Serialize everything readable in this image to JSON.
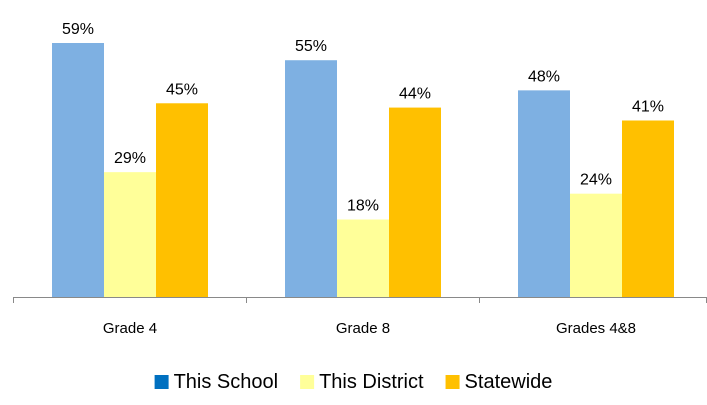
{
  "chart_data": {
    "type": "bar",
    "title": "",
    "xlabel": "",
    "ylabel": "",
    "categories": [
      "Grade 4",
      "Grade 8",
      "Grades 4&8"
    ],
    "series": [
      {
        "name": "This School",
        "values": [
          59,
          55,
          48
        ],
        "labels": [
          "59%",
          "55%",
          "48%"
        ],
        "color": "#7EB0E2"
      },
      {
        "name": "This District",
        "values": [
          29,
          18,
          24
        ],
        "labels": [
          "29%",
          "18%",
          "24%"
        ],
        "color": "#FFFF99"
      },
      {
        "name": "Statewide",
        "values": [
          45,
          44,
          41
        ],
        "labels": [
          "45%",
          "44%",
          "41%"
        ],
        "color": "#FFC000"
      }
    ],
    "legend_swatch_colors": [
      "#0070C0",
      "#FFFF99",
      "#FFC000"
    ],
    "ylim": [
      0,
      60
    ],
    "grid": false,
    "legend_position": "bottom"
  }
}
